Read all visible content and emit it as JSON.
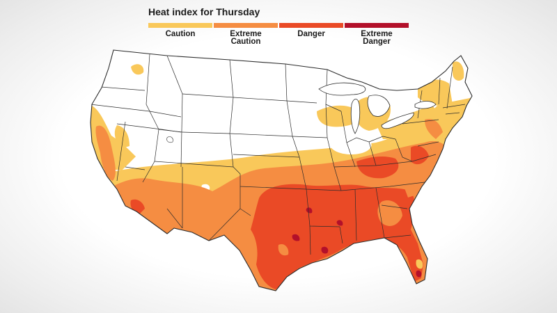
{
  "title": "Heat index for Thursday",
  "legend": [
    {
      "label": "Caution",
      "color": "#f9c85a"
    },
    {
      "label": "Extreme\nCaution",
      "color": "#f58d42"
    },
    {
      "label": "Danger",
      "color": "#ea4a26"
    },
    {
      "label": "Extreme\nDanger",
      "color": "#b3102a"
    }
  ],
  "colors": {
    "land": "#ffffff",
    "borders": "#2b2b2b",
    "caution": "#f9c85a",
    "extreme_caution": "#f58d42",
    "danger": "#ea4a26",
    "extreme_danger": "#b3102a"
  }
}
